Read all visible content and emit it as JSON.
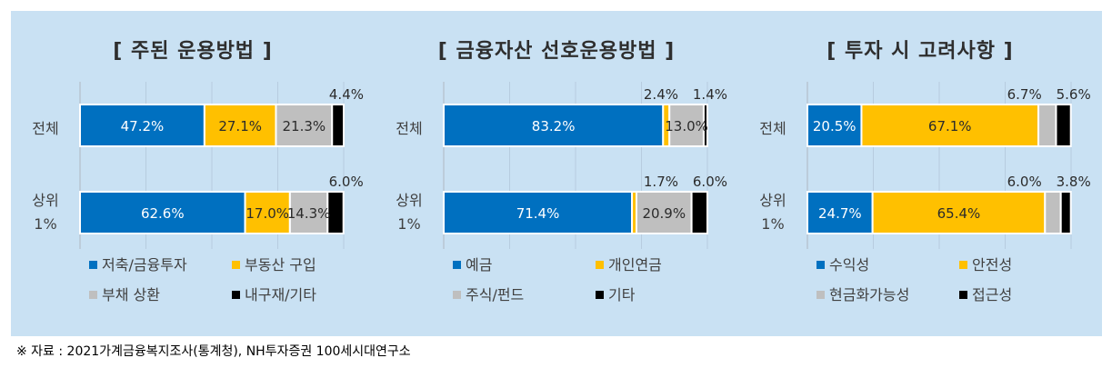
{
  "colors": {
    "blue": "#0070c0",
    "yellow": "#ffc000",
    "gray": "#bfbfbf",
    "black": "#000000",
    "panel": "#c9e1f3"
  },
  "source_note": "※ 자료 : 2021가계금융복지조사(통계청), NH투자증권 100세시대연구소",
  "chart_data": [
    {
      "type": "bar",
      "orientation": "horizontal-stacked",
      "title": "[ 주된 운용방법 ]",
      "categories": [
        [
          "전체"
        ],
        [
          "상위",
          "1%"
        ]
      ],
      "series": [
        {
          "name": "저축/금융투자",
          "color": "#0070c0",
          "values": [
            47.2,
            62.6
          ],
          "labels": [
            "47.2%",
            "62.6%"
          ]
        },
        {
          "name": "부동산 구입",
          "color": "#ffc000",
          "values": [
            27.1,
            17.0
          ],
          "labels": [
            "27.1%",
            "17.0%"
          ]
        },
        {
          "name": "부채 상환",
          "color": "#bfbfbf",
          "values": [
            21.3,
            14.3
          ],
          "labels": [
            "21.3%",
            "14.3%"
          ]
        },
        {
          "name": "내구재/기타",
          "color": "#000000",
          "values": [
            4.4,
            6.0
          ],
          "labels": [
            "4.4%",
            "6.0%"
          ]
        }
      ],
      "xlim": [
        0,
        100
      ],
      "legend": "bottom, 2 columns"
    },
    {
      "type": "bar",
      "orientation": "horizontal-stacked",
      "title": "[ 금융자산 선호운용방법 ]",
      "categories": [
        [
          "전체"
        ],
        [
          "상위",
          "1%"
        ]
      ],
      "series": [
        {
          "name": "예금",
          "color": "#0070c0",
          "values": [
            83.2,
            71.4
          ],
          "labels": [
            "83.2%",
            "71.4%"
          ]
        },
        {
          "name": "개인연금",
          "color": "#ffc000",
          "values": [
            2.4,
            1.7
          ],
          "labels": [
            "2.4%",
            "1.7%"
          ]
        },
        {
          "name": "주식/펀드",
          "color": "#bfbfbf",
          "values": [
            13.0,
            20.9
          ],
          "labels": [
            "13.0%",
            "20.9%"
          ]
        },
        {
          "name": "기타",
          "color": "#000000",
          "values": [
            1.4,
            6.0
          ],
          "labels": [
            "1.4%",
            "6.0%"
          ]
        }
      ],
      "xlim": [
        0,
        100
      ],
      "legend": "bottom, 2 columns"
    },
    {
      "type": "bar",
      "orientation": "horizontal-stacked",
      "title": "[ 투자 시 고려사항 ]",
      "categories": [
        [
          "전체"
        ],
        [
          "상위",
          "1%"
        ]
      ],
      "series": [
        {
          "name": "수익성",
          "color": "#0070c0",
          "values": [
            20.5,
            24.7
          ],
          "labels": [
            "20.5%",
            "24.7%"
          ]
        },
        {
          "name": "안전성",
          "color": "#ffc000",
          "values": [
            67.1,
            65.4
          ],
          "labels": [
            "67.1%",
            "65.4%"
          ]
        },
        {
          "name": "현금화가능성",
          "color": "#bfbfbf",
          "values": [
            6.7,
            6.0
          ],
          "labels": [
            "6.7%",
            "6.0%"
          ]
        },
        {
          "name": "접근성",
          "color": "#000000",
          "values": [
            5.6,
            3.8
          ],
          "labels": [
            "5.6%",
            "3.8%"
          ]
        }
      ],
      "xlim": [
        0,
        100
      ],
      "legend": "bottom, 2 columns"
    }
  ]
}
